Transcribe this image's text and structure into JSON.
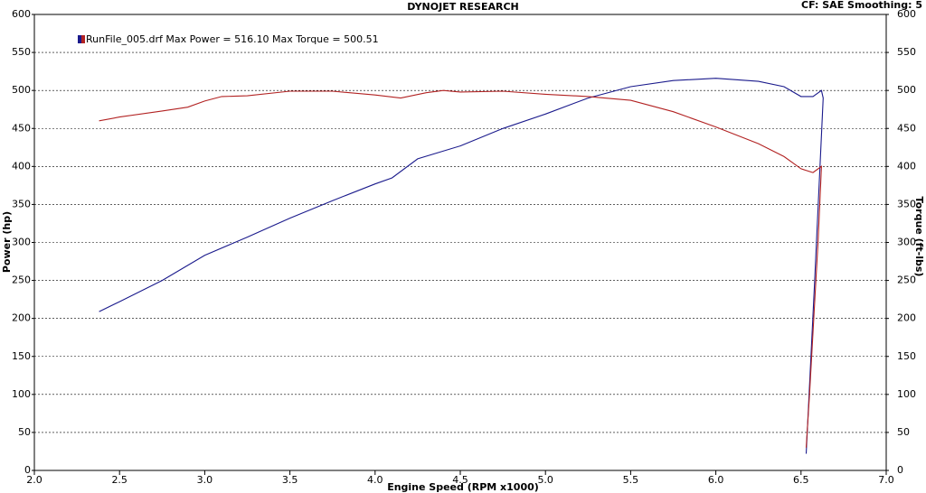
{
  "chart_data": {
    "type": "line",
    "title": "DYNOJET RESEARCH",
    "subtitle": "CF: SAE  Smoothing: 5",
    "legend_text": "RunFile_005.drf Max Power = 516.10     Max Torque = 500.51",
    "legend_colors": [
      "#1a1a8c",
      "#b22222"
    ],
    "x_label": "Engine Speed (RPM x1000)",
    "y_label": "Power (hp)",
    "y2_label": "Torque (ft-lbs)",
    "xlim": [
      2,
      7
    ],
    "xticks": [
      {
        "value": 2,
        "label": "2.0"
      },
      {
        "value": 2.5,
        "label": "2.5"
      },
      {
        "value": 3,
        "label": "3.0"
      },
      {
        "value": 3.5,
        "label": "3.5"
      },
      {
        "value": 4,
        "label": "4.0"
      },
      {
        "value": 4.5,
        "label": "4.5"
      },
      {
        "value": 5,
        "label": "5.0"
      },
      {
        "value": 5.5,
        "label": "5.5"
      },
      {
        "value": 6,
        "label": "6.0"
      },
      {
        "value": 6.5,
        "label": "6.5"
      },
      {
        "value": 7,
        "label": "7.0"
      }
    ],
    "ylim": [
      0,
      600
    ],
    "yticks": [
      0,
      50,
      100,
      150,
      200,
      250,
      300,
      350,
      400,
      450,
      500,
      550,
      600
    ],
    "y2lim": [
      0,
      600
    ],
    "y2ticks": [
      0,
      50,
      100,
      150,
      200,
      250,
      300,
      350,
      400,
      450,
      500,
      550,
      600
    ],
    "grid": true,
    "series": [
      {
        "color": "#1a1a8c",
        "x": [
          2.38,
          2.5,
          2.75,
          3.0,
          3.25,
          3.5,
          3.75,
          4.0,
          4.1,
          4.25,
          4.5,
          4.75,
          5.0,
          5.25,
          5.5,
          5.75,
          6.0,
          6.25,
          6.4,
          6.5,
          6.57,
          6.62,
          6.63,
          6.58,
          6.53
        ],
        "values": [
          209,
          222,
          250,
          283,
          307,
          332,
          355,
          377,
          385,
          410,
          427,
          450,
          469,
          490,
          505,
          513,
          516,
          512,
          505,
          492,
          492,
          500,
          490,
          250,
          22
        ]
      },
      {
        "color": "#b22222",
        "axis": "y2",
        "x": [
          2.38,
          2.5,
          2.75,
          2.9,
          3.0,
          3.1,
          3.25,
          3.5,
          3.75,
          4.0,
          4.15,
          4.3,
          4.4,
          4.5,
          4.75,
          5.0,
          5.25,
          5.5,
          5.75,
          6.0,
          6.25,
          6.4,
          6.5,
          6.57,
          6.62,
          6.6,
          6.55,
          6.53
        ],
        "values": [
          460,
          465,
          473,
          478,
          486,
          492,
          493,
          499,
          499,
          494,
          490,
          497,
          500,
          498,
          499,
          495,
          492,
          487,
          472,
          452,
          430,
          413,
          397,
          392,
          400,
          300,
          100,
          30
        ]
      }
    ]
  }
}
